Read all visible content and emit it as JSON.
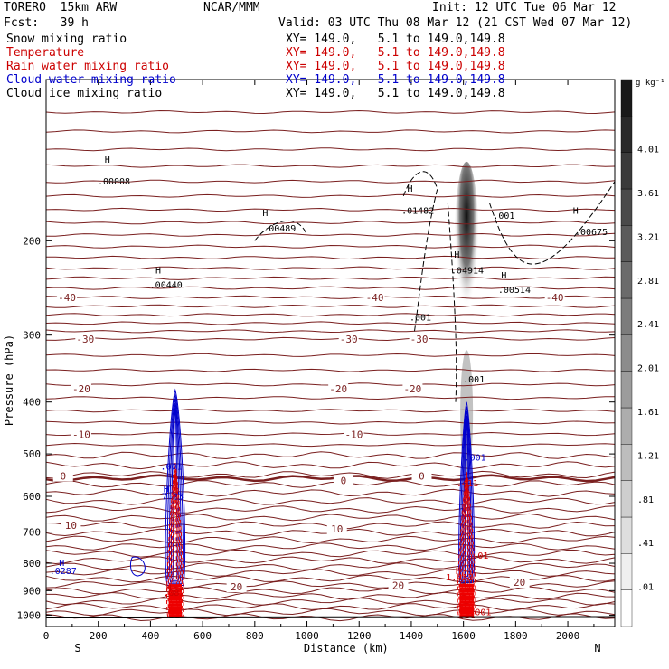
{
  "header": {
    "model": "TORERO  15km ARW",
    "center": "NCAR/MMM",
    "init": "Init: 12 UTC Tue 06 Mar 12",
    "fcst": "Fcst:   39 h",
    "valid": "Valid: 03 UTC Thu 08 Mar 12 (21 CST Wed 07 Mar 12)"
  },
  "fields": [
    {
      "name": "Snow mixing ratio",
      "xy": "XY= 149.0,   5.1 to 149.0,149.8",
      "color": "#000000"
    },
    {
      "name": "Temperature",
      "xy": "XY= 149.0,   5.1 to 149.0,149.8",
      "color": "#cc0000"
    },
    {
      "name": "Rain water mixing ratio",
      "xy": "XY= 149.0,   5.1 to 149.0,149.8",
      "color": "#cc0000"
    },
    {
      "name": "Cloud water mixing ratio",
      "xy": "XY= 149.0,   5.1 to 149.0,149.8",
      "color": "#0000cc"
    },
    {
      "name": "Cloud ice mixing ratio",
      "xy": "XY= 149.0,   5.1 to 149.0,149.8",
      "color": "#000000"
    }
  ],
  "chart_data": {
    "type": "contour",
    "xlabel": "Distance (km)",
    "ylabel": "Pressure (hPa)",
    "x_ticks": [
      0,
      200,
      400,
      600,
      800,
      1000,
      1200,
      1400,
      1600,
      1800,
      2000
    ],
    "y_ticks": [
      200,
      300,
      400,
      500,
      600,
      700,
      800,
      900,
      1000
    ],
    "xlim": [
      0,
      2180
    ],
    "ylim": [
      1050,
      100
    ],
    "y_scale": "log",
    "end_labels": {
      "left": "S",
      "right": "N"
    },
    "colorbar": {
      "unit": "g kg⁻¹",
      "levels": [
        ".01",
        ".41",
        ".81",
        "1.21",
        "1.61",
        "2.01",
        "2.41",
        "2.81",
        "3.21",
        "3.61",
        "4.01"
      ]
    },
    "temperature_labels": [
      {
        "text": "-40",
        "x": 80,
        "p": 255
      },
      {
        "text": "-40",
        "x": 1260,
        "p": 255
      },
      {
        "text": "-40",
        "x": 1950,
        "p": 255
      },
      {
        "text": "-30",
        "x": 150,
        "p": 305
      },
      {
        "text": "-30",
        "x": 1160,
        "p": 305
      },
      {
        "text": "-30",
        "x": 1430,
        "p": 305
      },
      {
        "text": "-20",
        "x": 135,
        "p": 378
      },
      {
        "text": "-20",
        "x": 1120,
        "p": 378
      },
      {
        "text": "-20",
        "x": 1405,
        "p": 378
      },
      {
        "text": "-10",
        "x": 135,
        "p": 460
      },
      {
        "text": "-10",
        "x": 1180,
        "p": 460
      },
      {
        "text": "0",
        "x": 65,
        "p": 550
      },
      {
        "text": "0",
        "x": 1140,
        "p": 560
      },
      {
        "text": "0",
        "x": 1440,
        "p": 550
      },
      {
        "text": "10",
        "x": 95,
        "p": 680
      },
      {
        "text": "10",
        "x": 1115,
        "p": 690
      },
      {
        "text": "20",
        "x": 730,
        "p": 885
      },
      {
        "text": "20",
        "x": 1350,
        "p": 880
      },
      {
        "text": "20",
        "x": 1815,
        "p": 868
      }
    ],
    "annotations": [
      {
        "text": "H",
        "x": 235,
        "p": 143,
        "color": "#000000"
      },
      {
        "text": ".00008",
        "x": 260,
        "p": 157,
        "color": "#000000"
      },
      {
        "text": "H",
        "x": 840,
        "p": 180,
        "color": "#000000"
      },
      {
        "text": ".00489",
        "x": 895,
        "p": 192,
        "color": "#000000"
      },
      {
        "text": "H",
        "x": 430,
        "p": 230,
        "color": "#000000"
      },
      {
        "text": ".00440",
        "x": 460,
        "p": 245,
        "color": "#000000"
      },
      {
        "text": "H",
        "x": 1395,
        "p": 162,
        "color": "#000000"
      },
      {
        "text": ".01482",
        "x": 1425,
        "p": 178,
        "color": "#000000"
      },
      {
        "text": ".001",
        "x": 1755,
        "p": 182,
        "color": "#000000"
      },
      {
        "text": "H",
        "x": 2030,
        "p": 178,
        "color": "#000000"
      },
      {
        "text": ".00675",
        "x": 2090,
        "p": 195,
        "color": "#000000"
      },
      {
        "text": "H",
        "x": 1575,
        "p": 215,
        "color": "#000000"
      },
      {
        "text": ".04914",
        "x": 1615,
        "p": 230,
        "color": "#000000"
      },
      {
        "text": "H",
        "x": 1755,
        "p": 235,
        "color": "#000000"
      },
      {
        "text": ".00514",
        "x": 1795,
        "p": 250,
        "color": "#000000"
      },
      {
        "text": ".001",
        "x": 1435,
        "p": 282,
        "color": "#000000"
      },
      {
        "text": ".001",
        "x": 1640,
        "p": 368,
        "color": "#000000"
      },
      {
        "text": ".001",
        "x": 1645,
        "p": 515,
        "color": "#0000cc"
      },
      {
        "text": ".001",
        "x": 480,
        "p": 535,
        "color": "#0000cc"
      },
      {
        "text": "H",
        "x": 460,
        "p": 590,
        "color": "#0000cc"
      },
      {
        "text": "7.23",
        "x": 485,
        "p": 608,
        "color": "#0000cc"
      },
      {
        "text": ".411",
        "x": 1615,
        "p": 575,
        "color": "#cc0000"
      },
      {
        "text": ".01",
        "x": 1665,
        "p": 785,
        "color": "#cc0000"
      },
      {
        "text": "H",
        "x": 60,
        "p": 810,
        "color": "#0000cc"
      },
      {
        "text": ".0287",
        "x": 65,
        "p": 838,
        "color": "#0000cc"
      },
      {
        "text": "H",
        "x": 1580,
        "p": 838,
        "color": "#cc0000"
      },
      {
        "text": "1.453",
        "x": 1585,
        "p": 862,
        "color": "#cc0000"
      },
      {
        "text": "H",
        "x": 470,
        "p": 900,
        "color": "#cc0000"
      },
      {
        "text": ".082",
        "x": 490,
        "p": 920,
        "color": "#cc0000"
      },
      {
        "text": ".001",
        "x": 1665,
        "p": 1000,
        "color": "#cc0000"
      }
    ]
  }
}
